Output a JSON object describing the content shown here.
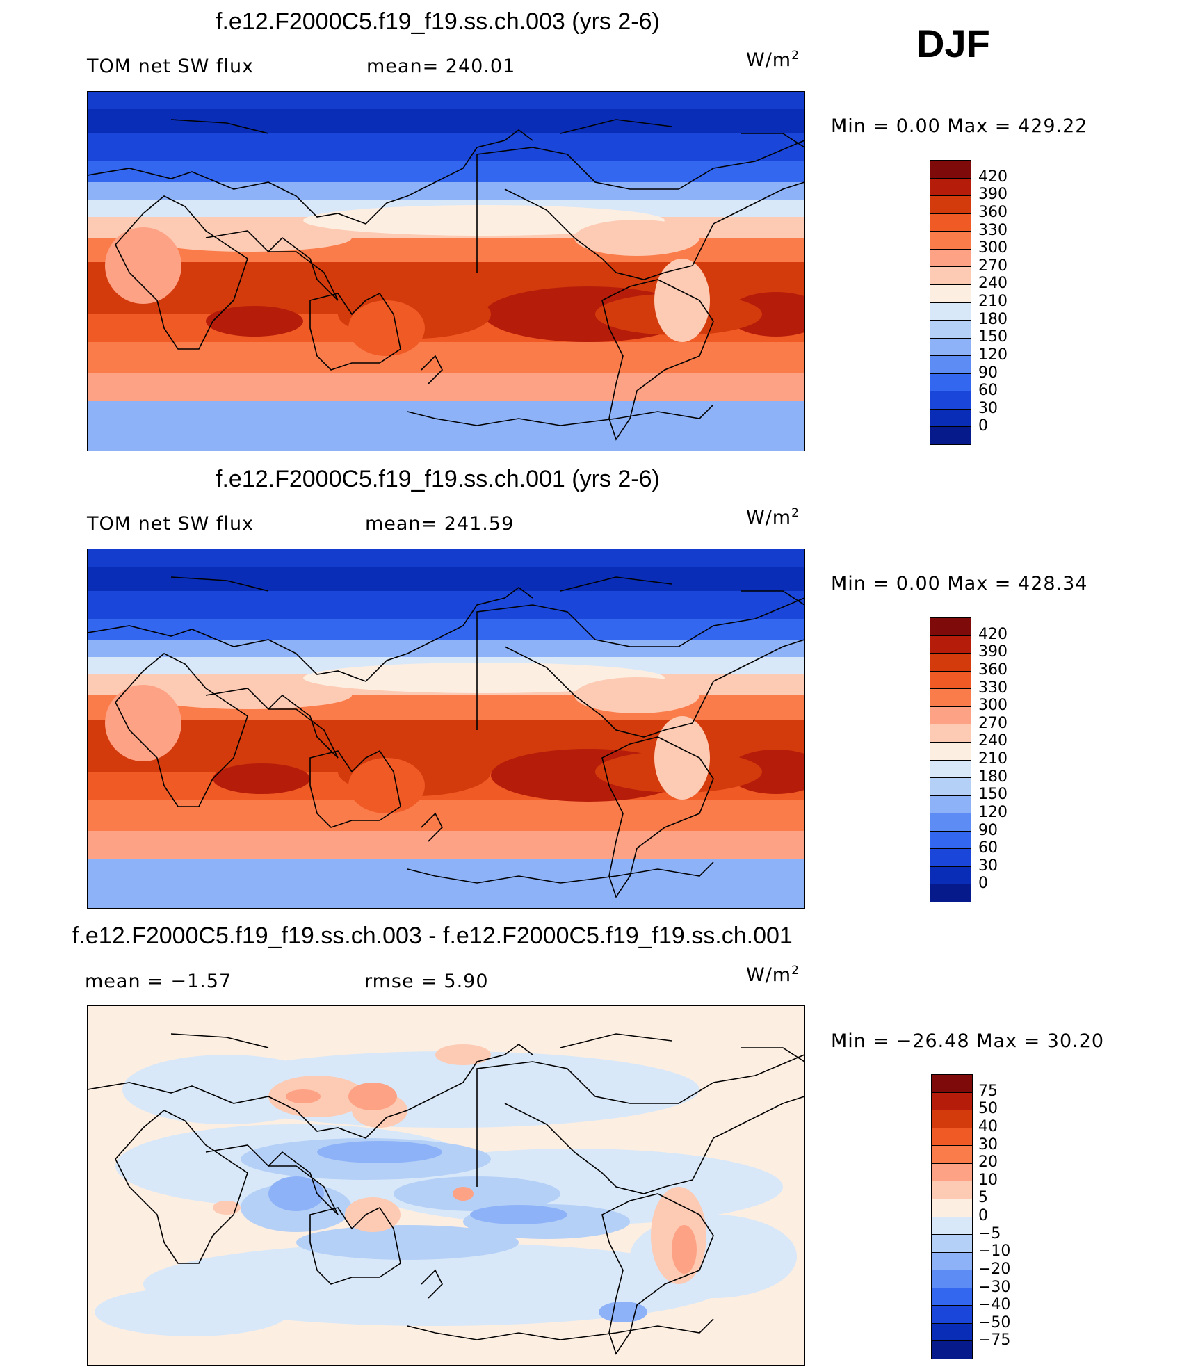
{
  "season": "DJF",
  "units": {
    "base": "W/m",
    "exp": "2"
  },
  "panels": [
    {
      "title": "f.e12.F2000C5.f19_f19.ss.ch.003 (yrs 2-6)",
      "left_label": "TOM  net  SW  flux",
      "stat_label": "mean=  240.01",
      "minmax": "Min  =      0.00  Max  =  429.22",
      "kind": "abs"
    },
    {
      "title": "f.e12.F2000C5.f19_f19.ss.ch.001 (yrs 2-6)",
      "left_label": "TOM  net  SW  flux",
      "stat_label": "mean=  241.59",
      "minmax": "Min  =      0.00  Max  =  428.34",
      "kind": "abs"
    },
    {
      "title": "f.e12.F2000C5.f19_f19.ss.ch.003 - f.e12.F2000C5.f19_f19.ss.ch.001",
      "left_label": "mean  =    −1.57",
      "stat_label": "rmse  =      5.90",
      "minmax": "Min  =  −26.48  Max  =    30.20",
      "kind": "diff"
    }
  ],
  "colorbars": {
    "abs": {
      "labels": [
        "420",
        "390",
        "360",
        "330",
        "300",
        "270",
        "240",
        "210",
        "180",
        "150",
        "120",
        "90",
        "60",
        "30",
        "0"
      ],
      "colors": [
        "#7f0a0a",
        "#b51d0a",
        "#d33a0c",
        "#f05a25",
        "#fb7c4b",
        "#fda285",
        "#fdcab3",
        "#fdeee2",
        "#d8e8f8",
        "#b5d0f7",
        "#8db2f8",
        "#5e8cf5",
        "#3467ef",
        "#1a47da",
        "#0a2db8",
        "#061a8c"
      ]
    },
    "diff": {
      "labels": [
        "75",
        "50",
        "40",
        "30",
        "20",
        "10",
        "5",
        "0",
        "−5",
        "−10",
        "−20",
        "−30",
        "−40",
        "−50",
        "−75"
      ],
      "colors": [
        "#7f0a0a",
        "#b51d0a",
        "#d33a0c",
        "#f05a25",
        "#fb7c4b",
        "#fda285",
        "#fdcab3",
        "#fdeee2",
        "#d8e8f8",
        "#b5d0f7",
        "#8db2f8",
        "#5e8cf5",
        "#3467ef",
        "#1a47da",
        "#0a2db8",
        "#061a8c"
      ]
    }
  }
}
